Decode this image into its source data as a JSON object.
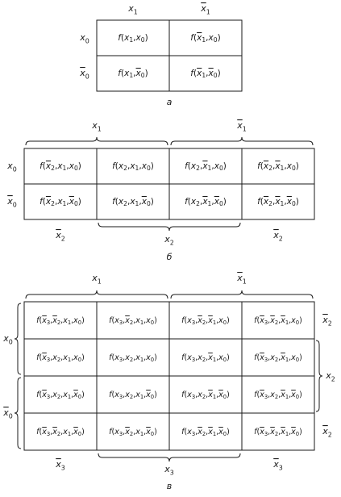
{
  "diagram_a": {
    "label": "а",
    "col_headers": [
      "x1",
      "x̄1"
    ],
    "row_headers": [
      "x0",
      "x̄0"
    ],
    "cells": [
      [
        "f(x1,x0)",
        "f(x̄1,x0)"
      ],
      [
        "f(x1,x̄0)",
        "f(x̄1,x̄0)"
      ]
    ]
  },
  "diagram_b": {
    "label": "б",
    "top_labels": [
      "x1",
      "x̄1"
    ],
    "row_headers": [
      "x0",
      "x̄0"
    ],
    "cells": [
      [
        "f(x̄2,x1,x0)",
        "f(x2,x1,x0)",
        "f(x2,x̄1,x0)",
        "f(x̄2,x̄1,x0)"
      ],
      [
        "f(x̄2,x1,x̄0)",
        "f(x2,x1,x̄0)",
        "f(x2,x̄1,x̄0)",
        "f(x̄2,x̄1,x̄0)"
      ]
    ],
    "bottom_labels": [
      "x̄2",
      "x2",
      "x̄2"
    ]
  },
  "diagram_c": {
    "label": "в",
    "top_labels": [
      "x1",
      "x̄1"
    ],
    "left_labels": [
      "x0",
      "x̄0"
    ],
    "right_labels": [
      "x̄2",
      "x2",
      "x̄2"
    ],
    "cells": [
      [
        "f(x̄3,x̄2,x1,x0)",
        "f(x3,x̄2,x1,x0)",
        "f(x3,x̄2,x̄1,x0)",
        "f(x̄3,x̄2,x̄1,x0)"
      ],
      [
        "f(x̄3,x2,x1,x0)",
        "f(x3,x2,x1,x0)",
        "f(x3,x2,x̄1,x0)",
        "f(x̄3,x2,x̄1,x0)"
      ],
      [
        "f(x̄3,x2,x1,x̄0)",
        "f(x3,x2,x1,x̄0)",
        "f(x3,x2,x̄1,x̄0)",
        "f(x̄3,x2,x̄1,x̄0)"
      ],
      [
        "f(x̄3,x̄2,x1,x̄0)",
        "f(x3,x̄2,x1,x̄0)",
        "f(x3,x̄2,x̄1,x̄0)",
        "f(x̄3,x̄2,x̄1,x̄0)"
      ]
    ],
    "bottom_labels": [
      "x̄3",
      "x3",
      "x̄3"
    ]
  }
}
